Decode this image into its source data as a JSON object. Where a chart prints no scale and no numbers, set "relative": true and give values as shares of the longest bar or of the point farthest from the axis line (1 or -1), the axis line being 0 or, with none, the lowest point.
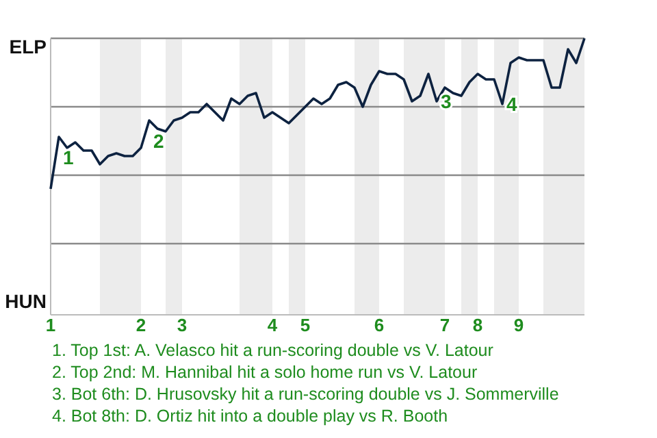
{
  "chart_data": {
    "type": "line",
    "relative": true,
    "categories": [
      "1",
      null,
      null,
      null,
      null,
      null,
      null,
      null,
      null,
      null,
      null,
      "2",
      null,
      null,
      null,
      null,
      "3",
      null,
      null,
      null,
      null,
      null,
      null,
      null,
      null,
      null,
      null,
      "4",
      null,
      null,
      null,
      "5",
      null,
      null,
      null,
      null,
      null,
      null,
      null,
      null,
      "6",
      null,
      null,
      null,
      null,
      null,
      null,
      null,
      "7",
      null,
      null,
      null,
      "8",
      null,
      null,
      null,
      null,
      "9",
      null,
      null,
      null,
      null,
      null,
      null,
      null,
      null
    ],
    "series": [
      {
        "color": "#0d2240",
        "values": [
          0.45,
          0.64,
          0.6,
          0.62,
          0.59,
          0.59,
          0.54,
          0.57,
          0.58,
          0.57,
          0.57,
          0.6,
          0.7,
          0.67,
          0.66,
          0.7,
          0.71,
          0.73,
          0.73,
          0.76,
          0.73,
          0.7,
          0.78,
          0.76,
          0.79,
          0.8,
          0.71,
          0.73,
          0.71,
          0.69,
          0.72,
          0.75,
          0.78,
          0.76,
          0.78,
          0.83,
          0.84,
          0.82,
          0.75,
          0.83,
          0.88,
          0.87,
          0.87,
          0.85,
          0.77,
          0.79,
          0.87,
          0.77,
          0.82,
          0.8,
          0.79,
          0.84,
          0.87,
          0.85,
          0.85,
          0.76,
          0.91,
          0.93,
          0.92,
          0.92,
          0.92,
          0.82,
          0.82,
          0.96,
          0.91,
          1.0
        ]
      }
    ],
    "grid": "y",
    "marker": "none",
    "annotations": [
      "ELP",
      "HUN",
      "1",
      "2",
      "3",
      "4",
      "1. Top 1st: A. Velasco hit a run-scoring double vs V. Latour",
      "2. Top 2nd: M. Hannibal hit a solo home run vs V. Latour",
      "3. Bot 6th: D. Hrusovsky hit a run-scoring double vs J. Sommerville",
      "4. Bot 8th: D. Ortiz hit into a double play vs R. Booth"
    ]
  }
}
